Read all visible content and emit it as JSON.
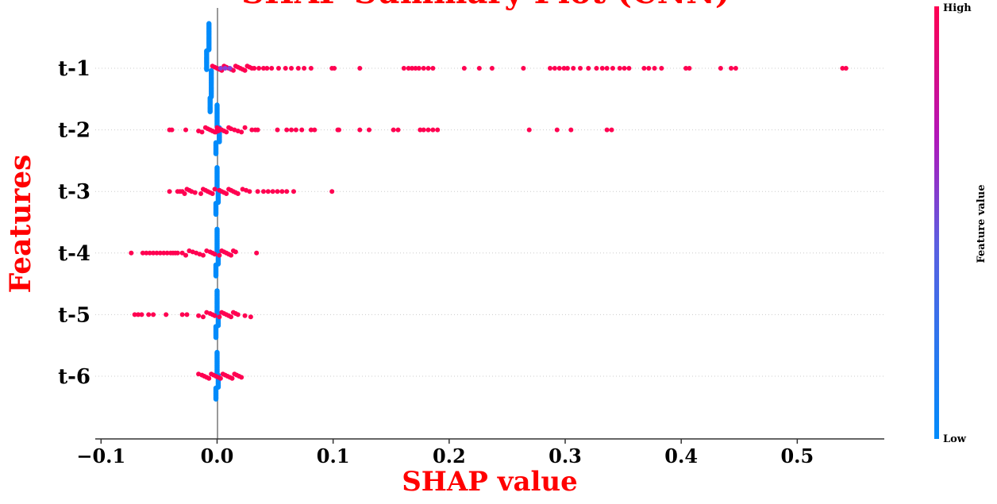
{
  "chart_data": {
    "type": "scatter",
    "title": "SHAP Summary Plot (CNN)",
    "xlabel": "SHAP value",
    "ylabel": "Features",
    "xlim": [
      -0.105,
      0.575
    ],
    "xticks": [
      "−0.1",
      "0.0",
      "0.1",
      "0.2",
      "0.3",
      "0.4",
      "0.5"
    ],
    "xtick_values": [
      -0.1,
      0.0,
      0.1,
      0.2,
      0.3,
      0.4,
      0.5
    ],
    "features": [
      "t-1",
      "t-2",
      "t-3",
      "t-4",
      "t-5",
      "t-6"
    ],
    "colors": {
      "high": "#ff0051",
      "low": "#008bfb",
      "zero_line": "#999999"
    },
    "colorbar": {
      "label": "Feature value",
      "high": "High",
      "low": "Low"
    },
    "series": [
      {
        "feature": "t-1",
        "high_points": [
          -0.004,
          -0.002,
          0.0,
          0.002,
          0.004,
          0.006,
          0.008,
          0.01,
          0.012,
          0.014,
          0.016,
          0.018,
          0.02,
          0.022,
          0.024,
          0.026,
          0.028,
          0.03,
          0.032,
          0.036,
          0.04,
          0.043,
          0.047,
          0.053,
          0.059,
          0.064,
          0.07,
          0.075,
          0.081,
          0.099,
          0.101,
          0.123,
          0.161,
          0.165,
          0.168,
          0.171,
          0.174,
          0.178,
          0.182,
          0.186,
          0.213,
          0.226,
          0.237,
          0.264,
          0.287,
          0.291,
          0.295,
          0.299,
          0.302,
          0.307,
          0.313,
          0.32,
          0.327,
          0.332,
          0.336,
          0.341,
          0.347,
          0.351,
          0.355,
          0.368,
          0.372,
          0.377,
          0.383,
          0.404,
          0.407,
          0.434,
          0.443,
          0.447,
          0.539,
          0.542
        ],
        "low_points": [
          -0.007,
          -0.007,
          -0.007,
          -0.007,
          -0.007,
          -0.007,
          -0.007,
          -0.007,
          -0.007,
          -0.007,
          -0.007,
          -0.007,
          -0.007,
          -0.007,
          -0.007,
          -0.007,
          -0.007,
          -0.007,
          -0.007,
          -0.007,
          -0.007,
          -0.007,
          -0.009,
          -0.009,
          -0.009,
          -0.009,
          -0.009,
          -0.009,
          -0.009,
          -0.009,
          -0.009,
          -0.009,
          -0.009,
          -0.009,
          -0.009,
          -0.009,
          -0.009,
          -0.009,
          -0.005,
          -0.005,
          -0.005,
          -0.005,
          -0.005,
          -0.005,
          -0.005,
          -0.005,
          -0.005,
          -0.005,
          -0.005,
          -0.005,
          -0.005,
          -0.005,
          -0.005,
          -0.005,
          -0.005,
          -0.005,
          -0.005,
          -0.005,
          -0.005,
          -0.005,
          -0.006,
          -0.006,
          -0.006,
          -0.006,
          -0.006,
          -0.006,
          -0.006,
          -0.006,
          -0.006,
          -0.006,
          -0.006,
          -0.006
        ]
      },
      {
        "feature": "t-2",
        "high_points": [
          -0.041,
          -0.039,
          -0.027,
          -0.016,
          -0.013,
          -0.01,
          -0.008,
          -0.006,
          -0.004,
          -0.002,
          0.0,
          0.002,
          0.004,
          0.006,
          0.008,
          0.01,
          0.012,
          0.015,
          0.018,
          0.021,
          0.024,
          0.03,
          0.033,
          0.035,
          0.052,
          0.06,
          0.064,
          0.068,
          0.073,
          0.081,
          0.084,
          0.104,
          0.105,
          0.123,
          0.131,
          0.152,
          0.156,
          0.175,
          0.178,
          0.182,
          0.186,
          0.19,
          0.269,
          0.293,
          0.305,
          0.336,
          0.34,
          0.0,
          0.001,
          -0.001
        ],
        "low_points": [
          0.0,
          0.0,
          0.0,
          0.0,
          0.0,
          0.0,
          0.0,
          0.0,
          0.0,
          0.0,
          0.0,
          0.0,
          0.0,
          0.0,
          0.0,
          0.0,
          0.0,
          0.0,
          0.0,
          0.0,
          0.0,
          0.0,
          0.0,
          0.002,
          0.002,
          0.002,
          0.002,
          0.002,
          0.002,
          0.002,
          0.002,
          0.002,
          0.002,
          0.002,
          0.002,
          0.002,
          0.002,
          0.002,
          -0.001,
          -0.001,
          -0.001,
          -0.001,
          -0.001,
          -0.001,
          -0.001,
          -0.001,
          -0.001,
          -0.001,
          -0.001,
          -0.001
        ]
      },
      {
        "feature": "t-3",
        "high_points": [
          -0.041,
          -0.034,
          -0.032,
          -0.03,
          -0.028,
          -0.026,
          -0.024,
          -0.022,
          -0.019,
          -0.014,
          -0.012,
          -0.01,
          -0.008,
          -0.006,
          -0.004,
          -0.002,
          0.002,
          0.004,
          0.006,
          0.008,
          0.01,
          0.012,
          0.014,
          0.016,
          0.018,
          0.022,
          0.025,
          0.028,
          0.035,
          0.04,
          0.044,
          0.048,
          0.052,
          0.056,
          0.06,
          0.066,
          0.099
        ],
        "low_points": [
          0.0,
          0.0,
          0.0,
          0.0,
          0.0,
          0.0,
          0.0,
          0.0,
          0.0,
          0.0,
          0.0,
          0.0,
          0.0,
          0.0,
          0.0,
          0.0,
          0.0,
          0.0,
          0.0,
          0.0,
          0.0,
          0.0,
          0.0,
          0.001,
          0.001,
          0.001,
          0.001,
          0.001,
          0.001,
          0.001,
          0.001,
          0.001,
          0.001,
          0.001,
          0.001,
          0.001,
          -0.001,
          -0.001,
          -0.001,
          -0.001,
          -0.001,
          -0.001,
          -0.001,
          -0.001,
          -0.001,
          -0.001,
          -0.001,
          -0.001
        ]
      },
      {
        "feature": "t-4",
        "high_points": [
          -0.074,
          -0.064,
          -0.061,
          -0.058,
          -0.055,
          -0.052,
          -0.049,
          -0.046,
          -0.043,
          -0.04,
          -0.038,
          -0.036,
          -0.034,
          -0.03,
          -0.027,
          -0.024,
          -0.021,
          -0.018,
          -0.015,
          -0.012,
          -0.009,
          -0.006,
          -0.004,
          -0.002,
          0.002,
          0.004,
          0.006,
          0.008,
          0.01,
          0.012,
          0.014,
          0.016,
          0.034
        ],
        "low_points": [
          0.0,
          0.0,
          0.0,
          0.0,
          0.0,
          0.0,
          0.0,
          0.0,
          0.0,
          0.0,
          0.0,
          0.0,
          0.0,
          0.0,
          0.0,
          0.0,
          0.0,
          0.0,
          0.0,
          0.0,
          0.0,
          0.0,
          0.0,
          0.001,
          0.001,
          0.001,
          0.001,
          0.001,
          0.001,
          0.001,
          0.001,
          0.001,
          0.001,
          0.001,
          0.001,
          0.001,
          -0.001,
          -0.001,
          -0.001,
          -0.001,
          -0.001,
          -0.001,
          -0.001,
          -0.001,
          -0.001,
          -0.001,
          -0.001,
          -0.001
        ]
      },
      {
        "feature": "t-5",
        "high_points": [
          -0.071,
          -0.068,
          -0.065,
          -0.059,
          -0.055,
          -0.044,
          -0.03,
          -0.026,
          -0.016,
          -0.012,
          -0.009,
          -0.006,
          -0.004,
          -0.002,
          0.002,
          0.004,
          0.006,
          0.008,
          0.01,
          0.012,
          0.014,
          0.016,
          0.018,
          0.024,
          0.029
        ],
        "low_points": [
          0.0,
          0.0,
          0.0,
          0.0,
          0.0,
          0.0,
          0.0,
          0.0,
          0.0,
          0.0,
          0.0,
          0.0,
          0.0,
          0.0,
          0.0,
          0.0,
          0.0,
          0.0,
          0.0,
          0.0,
          0.0,
          0.0,
          0.0,
          0.001,
          0.001,
          0.001,
          0.001,
          0.001,
          0.001,
          0.001,
          0.001,
          0.001,
          0.001,
          0.001,
          0.001,
          0.001,
          -0.001,
          -0.001,
          -0.001,
          -0.001,
          -0.001,
          -0.001,
          -0.001,
          -0.001,
          -0.001,
          -0.001,
          -0.001,
          -0.001
        ]
      },
      {
        "feature": "t-6",
        "high_points": [
          -0.016,
          -0.013,
          -0.011,
          -0.009,
          -0.007,
          -0.005,
          -0.003,
          -0.001,
          0.001,
          0.003,
          0.005,
          0.007,
          0.009,
          0.011,
          0.013,
          0.015,
          0.017,
          0.019,
          0.021
        ],
        "low_points": [
          0.0,
          0.0,
          0.0,
          0.0,
          0.0,
          0.0,
          0.0,
          0.0,
          0.0,
          0.0,
          0.0,
          0.0,
          0.0,
          0.0,
          0.0,
          0.0,
          0.0,
          0.0,
          0.0,
          0.0,
          0.0,
          0.0,
          0.0,
          0.001,
          0.001,
          0.001,
          0.001,
          0.001,
          0.001,
          0.001,
          0.001,
          0.001,
          0.001,
          0.001,
          0.001,
          0.001,
          -0.001,
          -0.001,
          -0.001,
          -0.001,
          -0.001,
          -0.001,
          -0.001,
          -0.001,
          -0.001,
          -0.001,
          -0.001,
          -0.001
        ]
      }
    ]
  }
}
